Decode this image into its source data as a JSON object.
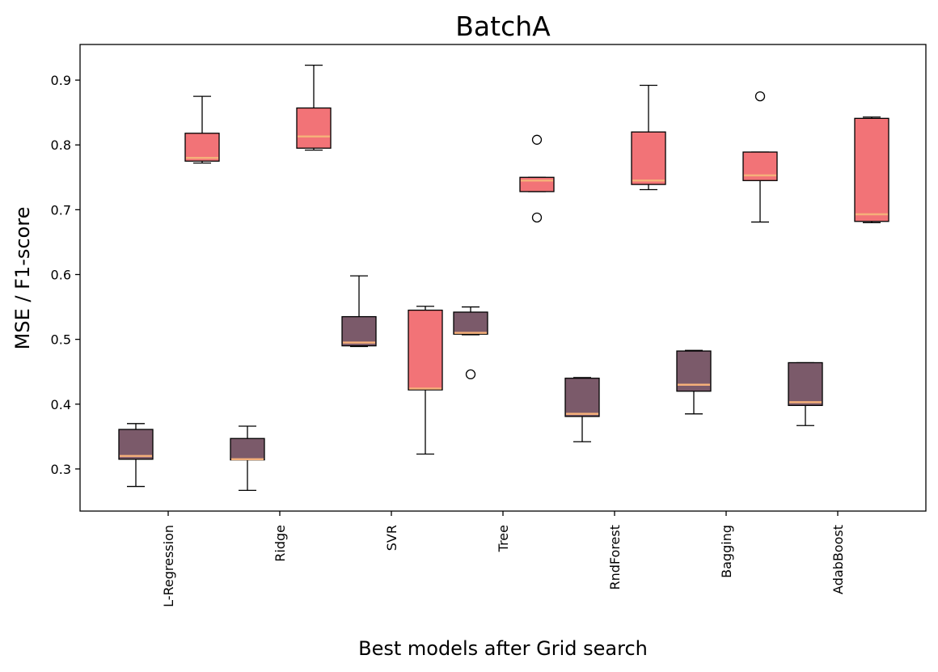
{
  "chart_data": {
    "type": "box",
    "title": "BatchA",
    "xlabel": "Best models after Grid search",
    "ylabel": "MSE / F1-score",
    "ylim": [
      0.235,
      0.955
    ],
    "yticks": [
      0.3,
      0.4,
      0.5,
      0.6,
      0.7,
      0.8,
      0.9
    ],
    "categories": [
      "L-Regression",
      "Ridge",
      "SVR",
      "Tree",
      "RndForest",
      "Bagging",
      "AdabBoost"
    ],
    "grid": false,
    "colors": {
      "mse": "#7b5a6a",
      "f1": "#f27377",
      "median": "#f5b07a"
    },
    "series": [
      {
        "key": "mse",
        "boxes": [
          {
            "whislo": 0.273,
            "q1": 0.315,
            "med": 0.32,
            "q3": 0.361,
            "whishi": 0.37,
            "fliers": []
          },
          {
            "whislo": 0.267,
            "q1": 0.314,
            "med": 0.315,
            "q3": 0.347,
            "whishi": 0.366,
            "fliers": []
          },
          {
            "whislo": 0.489,
            "q1": 0.49,
            "med": 0.495,
            "q3": 0.535,
            "whishi": 0.598,
            "fliers": []
          },
          {
            "whislo": 0.507,
            "q1": 0.508,
            "med": 0.51,
            "q3": 0.542,
            "whishi": 0.55,
            "fliers": [
              0.446
            ]
          },
          {
            "whislo": 0.342,
            "q1": 0.381,
            "med": 0.385,
            "q3": 0.44,
            "whishi": 0.441,
            "fliers": []
          },
          {
            "whislo": 0.385,
            "q1": 0.42,
            "med": 0.43,
            "q3": 0.482,
            "whishi": 0.483,
            "fliers": []
          },
          {
            "whislo": 0.367,
            "q1": 0.398,
            "med": 0.403,
            "q3": 0.464,
            "whishi": 0.464,
            "fliers": []
          }
        ]
      },
      {
        "key": "f1",
        "boxes": [
          {
            "whislo": 0.772,
            "q1": 0.775,
            "med": 0.78,
            "q3": 0.818,
            "whishi": 0.875,
            "fliers": []
          },
          {
            "whislo": 0.792,
            "q1": 0.795,
            "med": 0.813,
            "q3": 0.857,
            "whishi": 0.923,
            "fliers": []
          },
          {
            "whislo": 0.323,
            "q1": 0.422,
            "med": 0.424,
            "q3": 0.545,
            "whishi": 0.551,
            "fliers": []
          },
          {
            "whislo": 0.728,
            "q1": 0.728,
            "med": 0.745,
            "q3": 0.75,
            "whishi": 0.75,
            "fliers": [
              0.808,
              0.688
            ]
          },
          {
            "whislo": 0.731,
            "q1": 0.739,
            "med": 0.745,
            "q3": 0.82,
            "whishi": 0.892,
            "fliers": []
          },
          {
            "whislo": 0.681,
            "q1": 0.745,
            "med": 0.753,
            "q3": 0.789,
            "whishi": 0.789,
            "fliers": [
              0.875
            ]
          },
          {
            "whislo": 0.68,
            "q1": 0.682,
            "med": 0.693,
            "q3": 0.841,
            "whishi": 0.843,
            "fliers": []
          }
        ]
      }
    ]
  }
}
